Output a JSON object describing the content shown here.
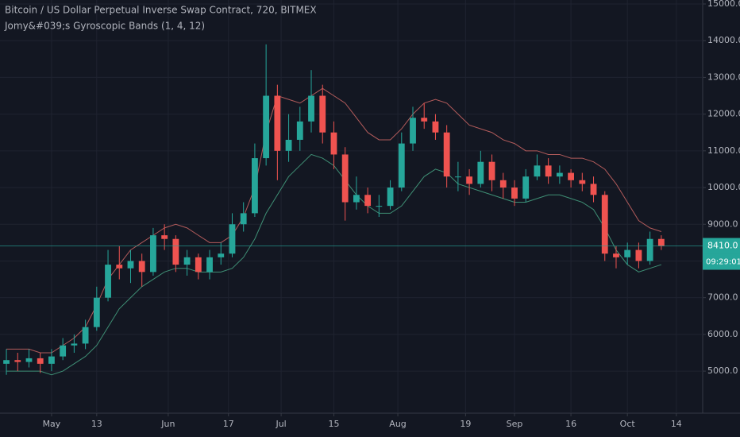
{
  "chart_data": {
    "type": "candlestick",
    "title": "Bitcoin / US Dollar Perpetual Inverse Swap Contract, 720, BITMEX",
    "subtitle": "Jomy&#039;s Gyroscopic Bands (1, 4, 12)",
    "x": [
      -12,
      -9,
      -6,
      -3,
      0,
      3,
      6,
      9,
      12,
      15,
      18,
      21,
      24,
      27,
      30,
      33,
      36,
      39,
      42,
      45,
      48,
      51,
      54,
      57,
      60,
      63,
      66,
      69,
      72,
      75,
      78,
      81,
      84,
      87,
      90,
      93,
      96,
      99,
      102,
      105,
      108,
      111,
      114,
      117,
      120,
      123,
      126,
      129,
      132,
      135,
      138,
      141,
      144,
      147,
      150,
      153,
      156,
      159,
      162
    ],
    "open": [
      5200,
      5300,
      5250,
      5350,
      5200,
      5400,
      5700,
      5750,
      6200,
      7000,
      7900,
      7800,
      8000,
      7700,
      8700,
      8600,
      7900,
      8100,
      7700,
      8100,
      8200,
      9000,
      9300,
      10800,
      12500,
      11000,
      11300,
      11800,
      12500,
      11500,
      10900,
      9600,
      9800,
      9500,
      9500,
      10000,
      11200,
      11900,
      11800,
      11500,
      10300,
      10300,
      10100,
      10700,
      10200,
      10000,
      9700,
      10300,
      10600,
      10300,
      10400,
      10200,
      10100,
      9800,
      8200,
      8100,
      8300,
      8000,
      8600
    ],
    "high": [
      5600,
      5500,
      5600,
      5500,
      5600,
      5900,
      6000,
      6400,
      7300,
      8300,
      8400,
      8300,
      8200,
      8900,
      9000,
      8700,
      8300,
      8200,
      8300,
      8500,
      9300,
      9600,
      11200,
      13900,
      12800,
      12000,
      12200,
      13200,
      12800,
      11800,
      11100,
      10300,
      10000,
      9800,
      10200,
      11500,
      12200,
      12300,
      12000,
      11700,
      10700,
      10500,
      11000,
      10900,
      10400,
      10200,
      10500,
      10900,
      10800,
      10600,
      10500,
      10400,
      10300,
      9900,
      8400,
      8500,
      8500,
      8800,
      8700
    ],
    "low": [
      4900,
      5000,
      5100,
      4950,
      5000,
      5300,
      5500,
      5600,
      6100,
      6900,
      7500,
      7400,
      7300,
      7600,
      8300,
      7700,
      7600,
      7500,
      7500,
      7900,
      8100,
      8800,
      9200,
      10600,
      10200,
      10700,
      11000,
      11500,
      11200,
      10500,
      9100,
      9400,
      9300,
      9200,
      9400,
      9900,
      11000,
      11600,
      11300,
      10000,
      9900,
      9800,
      10000,
      9900,
      9700,
      9500,
      9600,
      10200,
      10100,
      10100,
      10000,
      9900,
      9600,
      8000,
      7800,
      7900,
      7800,
      7900,
      8300
    ],
    "close": [
      5300,
      5250,
      5350,
      5200,
      5400,
      5700,
      5750,
      6200,
      7000,
      7900,
      7800,
      8000,
      7700,
      8700,
      8600,
      7900,
      8100,
      7700,
      8100,
      8200,
      9000,
      9300,
      10800,
      12500,
      11000,
      11300,
      11800,
      12500,
      11500,
      10900,
      9600,
      9800,
      9500,
      9500,
      10000,
      11200,
      11900,
      11800,
      11500,
      10300,
      10300,
      10100,
      10700,
      10200,
      10000,
      9700,
      10300,
      10600,
      10300,
      10400,
      10200,
      10100,
      9800,
      8200,
      8100,
      8300,
      8000,
      8600,
      8410
    ],
    "up_color": "#26a69a",
    "down_color": "#ef5350",
    "series": [
      {
        "name": "upper",
        "color": "#b25b5b",
        "values": [
          5600,
          5600,
          5600,
          5500,
          5500,
          5700,
          5900,
          6200,
          6800,
          7500,
          7900,
          8300,
          8500,
          8700,
          8900,
          9000,
          8900,
          8700,
          8500,
          8500,
          8700,
          9200,
          10000,
          11500,
          12500,
          12400,
          12300,
          12500,
          12700,
          12500,
          12300,
          11900,
          11500,
          11300,
          11300,
          11600,
          12000,
          12300,
          12400,
          12300,
          12000,
          11700,
          11600,
          11500,
          11300,
          11200,
          11000,
          11000,
          10900,
          10900,
          10800,
          10800,
          10700,
          10500,
          10100,
          9600,
          9100,
          8900,
          8800
        ]
      },
      {
        "name": "lower",
        "color": "#3f8f75",
        "values": [
          5000,
          5000,
          5000,
          5000,
          4900,
          5000,
          5200,
          5400,
          5700,
          6200,
          6700,
          7000,
          7300,
          7500,
          7700,
          7800,
          7800,
          7700,
          7700,
          7700,
          7800,
          8100,
          8600,
          9300,
          9800,
          10300,
          10600,
          10900,
          10800,
          10600,
          10200,
          9800,
          9500,
          9300,
          9300,
          9500,
          9900,
          10300,
          10500,
          10400,
          10100,
          10000,
          9900,
          9800,
          9700,
          9600,
          9600,
          9700,
          9800,
          9800,
          9700,
          9600,
          9400,
          8900,
          8300,
          7900,
          7700,
          7800,
          7900
        ]
      }
    ],
    "xlim": [
      -13.7,
      173
    ],
    "xticks": [
      {
        "value": 0,
        "label": "May"
      },
      {
        "value": 12,
        "label": "13"
      },
      {
        "value": 31,
        "label": "Jun"
      },
      {
        "value": 47,
        "label": "17"
      },
      {
        "value": 61,
        "label": "Jul"
      },
      {
        "value": 75,
        "label": "15"
      },
      {
        "value": 92,
        "label": "Aug"
      },
      {
        "value": 110,
        "label": "19"
      },
      {
        "value": 123,
        "label": "Sep"
      },
      {
        "value": 138,
        "label": "16"
      },
      {
        "value": 153,
        "label": "Oct"
      },
      {
        "value": 166,
        "label": "14"
      }
    ],
    "ylim": [
      3855,
      15108
    ],
    "yticks": [
      {
        "value": 5000,
        "label": "5000.0"
      },
      {
        "value": 6000,
        "label": "6000.0"
      },
      {
        "value": 7000,
        "label": "7000.0"
      },
      {
        "value": 8000,
        "label": "8000.0"
      },
      {
        "value": 9000,
        "label": "9000.0"
      },
      {
        "value": 10000,
        "label": "10000.0"
      },
      {
        "value": 11000,
        "label": "11000.0"
      },
      {
        "value": 12000,
        "label": "12000.0"
      },
      {
        "value": 13000,
        "label": "13000.0"
      },
      {
        "value": 14000,
        "label": "14000.0"
      },
      {
        "value": 15000,
        "label": "15000.0"
      }
    ],
    "last_price": {
      "value": 8410,
      "label": "8410.0"
    },
    "countdown": "09:29:01",
    "grid": true
  }
}
